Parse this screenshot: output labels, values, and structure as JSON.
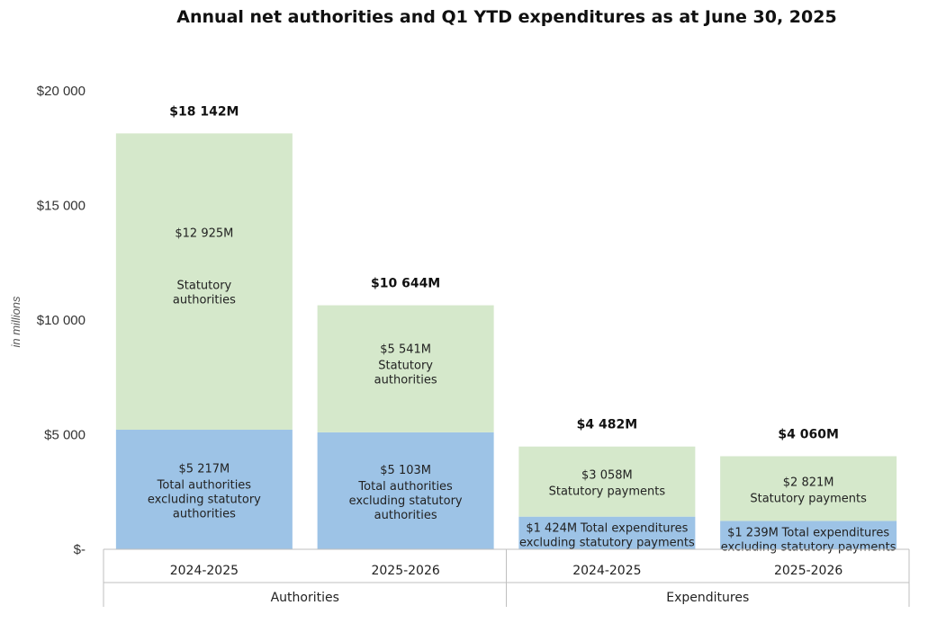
{
  "chart_data": {
    "type": "bar",
    "stacked": true,
    "title": "Annual net authorities and Q1 YTD expenditures as at June 30, 2025",
    "ylabel": "in millions",
    "ylim": [
      0,
      20000
    ],
    "yticks": [
      {
        "value": 0,
        "label": "$-"
      },
      {
        "value": 5000,
        "label": "$5 000"
      },
      {
        "value": 10000,
        "label": "$10 000"
      },
      {
        "value": 15000,
        "label": "$15 000"
      },
      {
        "value": 20000,
        "label": "$20 000"
      }
    ],
    "groups": [
      {
        "label": "Authorities",
        "categories": [
          "2024-2025",
          "2025-2026"
        ]
      },
      {
        "label": "Expenditures",
        "categories": [
          "2024-2025",
          "2025-2026"
        ]
      }
    ],
    "bars": [
      {
        "category": "2024-2025",
        "group": "Authorities",
        "total_label": "$18 142M",
        "segments": [
          {
            "value": 5217,
            "value_label": "$5 217M",
            "text": [
              "Total authorities",
              "excluding statutory",
              "authorities"
            ],
            "color": "#9dc3e6"
          },
          {
            "value": 12925,
            "value_label": "$12 925M",
            "text": [
              "Statutory",
              "authorities"
            ],
            "color": "#d5e8cb"
          }
        ]
      },
      {
        "category": "2025-2026",
        "group": "Authorities",
        "total_label": "$10 644M",
        "segments": [
          {
            "value": 5103,
            "value_label": "$5 103M",
            "text": [
              "Total authorities",
              "excluding statutory",
              "authorities"
            ],
            "color": "#9dc3e6"
          },
          {
            "value": 5541,
            "value_label": "$5 541M",
            "text": [
              "Statutory",
              "authorities"
            ],
            "color": "#d5e8cb"
          }
        ]
      },
      {
        "category": "2024-2025",
        "group": "Expenditures",
        "total_label": "$4 482M",
        "segments": [
          {
            "value": 1424,
            "value_label": "$1 424M",
            "text": [
              "Total expenditures",
              "excluding statutory payments"
            ],
            "color": "#9dc3e6"
          },
          {
            "value": 3058,
            "value_label": "$3 058M",
            "text": [
              "Statutory payments"
            ],
            "color": "#d5e8cb"
          }
        ]
      },
      {
        "category": "2025-2026",
        "group": "Expenditures",
        "total_label": "$4 060M",
        "segments": [
          {
            "value": 1239,
            "value_label": "$1 239M",
            "text": [
              "Total expenditures",
              "excluding statutory payments"
            ],
            "color": "#9dc3e6"
          },
          {
            "value": 2821,
            "value_label": "$2 821M",
            "text": [
              "Statutory payments"
            ],
            "color": "#d5e8cb"
          }
        ]
      }
    ]
  }
}
